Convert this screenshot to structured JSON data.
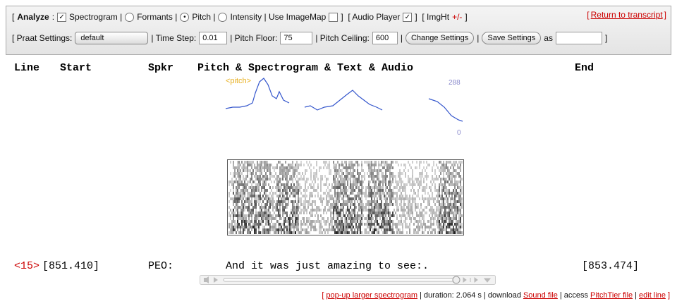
{
  "toolbar": {
    "row1": {
      "open": "[",
      "analyze": "Analyze",
      "colon": ":",
      "spectrogram": "Spectrogram |",
      "formants": "Formants |",
      "pitch": "Pitch |",
      "intensity": "Intensity | Use ImageMap",
      "close_audio": "]  [ Audio Player",
      "close_img": "]  [ ImgHt",
      "imght_toggle": "+/-",
      "close": "]"
    },
    "return": {
      "open": "[",
      "link": "Return to transcript",
      "close": "]"
    },
    "row2": {
      "praat_label": "[ Praat Settings:",
      "praat_value": "default",
      "time_step_label": "| Time Step:",
      "time_step_value": "0.01",
      "pitch_floor_label": "| Pitch Floor:",
      "pitch_floor_value": "75",
      "pitch_ceiling_label": "| Pitch Ceiling:",
      "pitch_ceiling_value": "600",
      "sep1": "|",
      "change_settings": "Change Settings",
      "sep2": "|",
      "save_settings": "Save Settings",
      "as_label": "as",
      "close": "]"
    }
  },
  "table": {
    "headers": [
      "Line",
      "Start",
      "Spkr",
      "Pitch & Spectrogram & Text & Audio",
      "End"
    ],
    "rows": [
      {
        "line": "<15>",
        "start": "[851.410]",
        "speaker": "PEO:",
        "text": "And it was just amazing to see:.",
        "end": "[853.474]"
      }
    ]
  },
  "pitch": {
    "label": "<pitch>",
    "max": "288",
    "min": "0"
  },
  "footer": {
    "open": "[",
    "popup": "pop-up larger spectrogram",
    "duration": "| duration: 2.064 s | download",
    "sound_file": "Sound file",
    "access": "| access",
    "pitchtier": "PitchTier file",
    "sep": "|",
    "edit_line": "edit line",
    "close": "]"
  }
}
